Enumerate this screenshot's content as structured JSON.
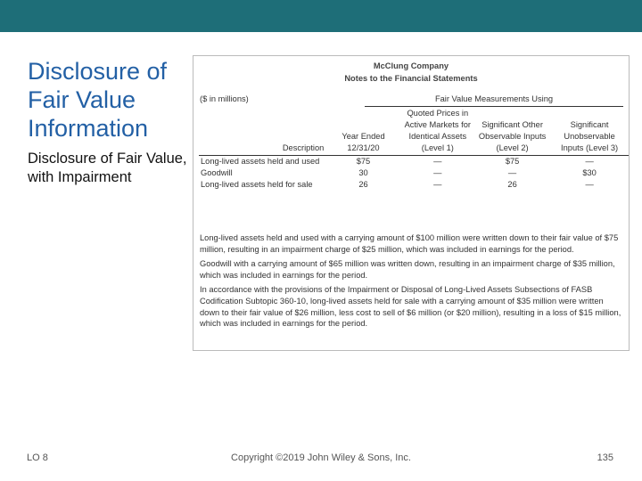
{
  "slide": {
    "title": "Disclosure of Fair Value Information",
    "subtitle": "Disclosure of Fair Value, with Impairment",
    "exhibit": {
      "company": "McClung Company",
      "heading": "Notes to the Financial Statements",
      "units": "($ in millions)",
      "group_header": "Fair Value Measurements Using",
      "columns": [
        "Description",
        "Year Ended 12/31/20",
        "Quoted Prices in Active Markets for Identical Assets (Level 1)",
        "Significant Other Observable Inputs (Level 2)",
        "Significant Unobservable Inputs (Level 3)"
      ],
      "rows": [
        [
          "Long-lived assets held and used",
          "$75",
          "—",
          "$75",
          "—"
        ],
        [
          "Goodwill",
          "30",
          "—",
          "—",
          "$30"
        ],
        [
          "Long-lived assets held for sale",
          "26",
          "—",
          "26",
          "—"
        ]
      ],
      "notes": [
        "Long-lived assets held and used with a carrying amount of $100 million were written down to their fair value of $75 million, resulting in an impairment charge of $25 million, which was included in earnings for the period.",
        "Goodwill with a carrying amount of $65 million was written down, resulting in an impairment charge of $35 million, which was included in earnings for the period.",
        "In accordance with the provisions of the Impairment or Disposal of Long-Lived Assets Subsections of FASB Codification Subtopic 360-10, long-lived assets held for sale with a carrying amount of $35 million were written down to their fair value of $26 million, less cost to sell of $6 million (or $20 million), resulting in a loss of $15 million, which was included in earnings for the period."
      ]
    },
    "footer": {
      "learning_objective": "LO 8",
      "copyright": "Copyright ©2019 John Wiley & Sons, Inc.",
      "page": "135"
    }
  }
}
